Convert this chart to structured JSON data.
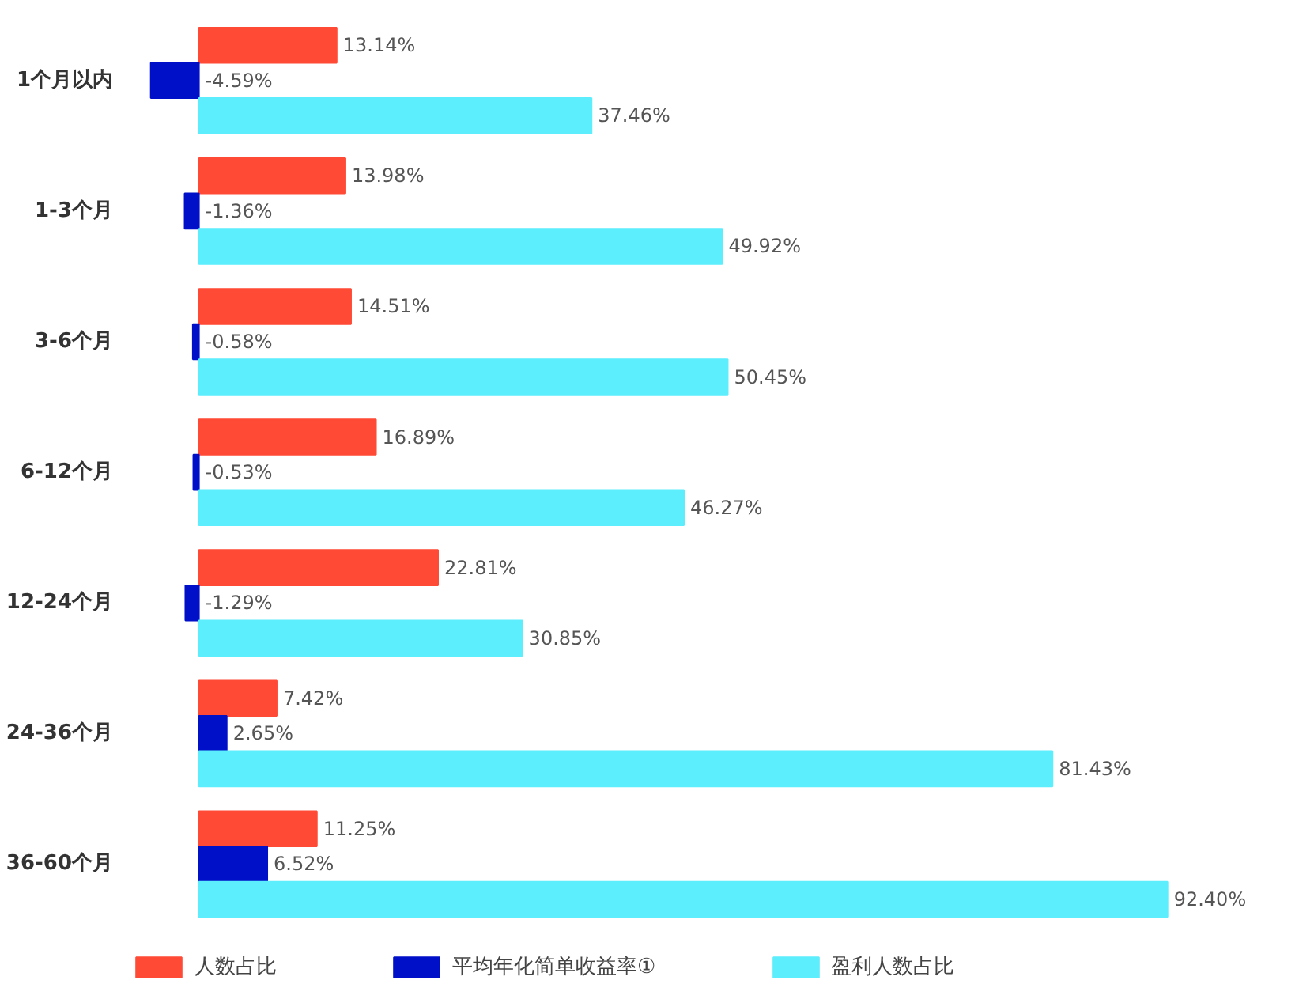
{
  "chart_data": {
    "type": "bar",
    "orientation": "horizontal",
    "categories": [
      "1个月以内",
      "1-3个月",
      "3-6个月",
      "6-12个月",
      "12-24个月",
      "24-36个月",
      "36-60个月"
    ],
    "series": [
      {
        "name": "人数占比",
        "color": "#ff4a36",
        "values": [
          13.14,
          13.98,
          14.51,
          16.89,
          22.81,
          7.42,
          11.25
        ],
        "value_labels": [
          "13.14%",
          "13.98%",
          "14.51%",
          "16.89%",
          "22.81%",
          "7.42%",
          "11.25%"
        ]
      },
      {
        "name": "平均年化简单收益率①",
        "color": "#0010c8",
        "values": [
          -4.59,
          -1.36,
          -0.58,
          -0.53,
          -1.29,
          2.65,
          6.52
        ],
        "value_labels": [
          "-4.59%",
          "-1.36%",
          "-0.58%",
          "-0.53%",
          "-1.29%",
          "2.65%",
          "6.52%"
        ]
      },
      {
        "name": "盈利人数占比",
        "color": "#5ceefc",
        "values": [
          37.46,
          49.92,
          50.45,
          46.27,
          30.85,
          81.43,
          92.4
        ],
        "value_labels": [
          "37.46%",
          "49.92%",
          "50.45%",
          "46.27%",
          "30.85%",
          "81.43%",
          "92.40%"
        ]
      }
    ],
    "legend": "bottom",
    "grid": false
  }
}
